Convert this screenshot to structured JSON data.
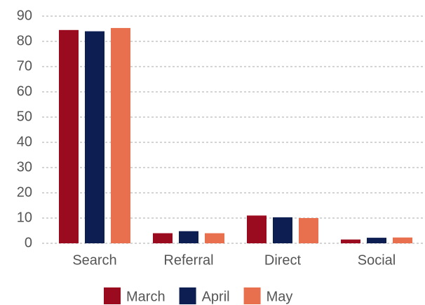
{
  "chart_data": {
    "type": "bar",
    "categories": [
      "Search",
      "Referral",
      "Direct",
      "Social"
    ],
    "series": [
      {
        "name": "March",
        "color": "#9b0b1f",
        "values": [
          84.5,
          4,
          11,
          1.5
        ]
      },
      {
        "name": "April",
        "color": "#0d1f52",
        "values": [
          84,
          4.8,
          10.3,
          2.2
        ]
      },
      {
        "name": "May",
        "color": "#e8704e",
        "values": [
          85.3,
          4,
          10,
          2.3
        ]
      }
    ],
    "ylim": [
      0,
      90
    ],
    "yticks": [
      0,
      10,
      20,
      30,
      40,
      50,
      60,
      70,
      80,
      90
    ],
    "grid": true,
    "legend": "bottom"
  }
}
